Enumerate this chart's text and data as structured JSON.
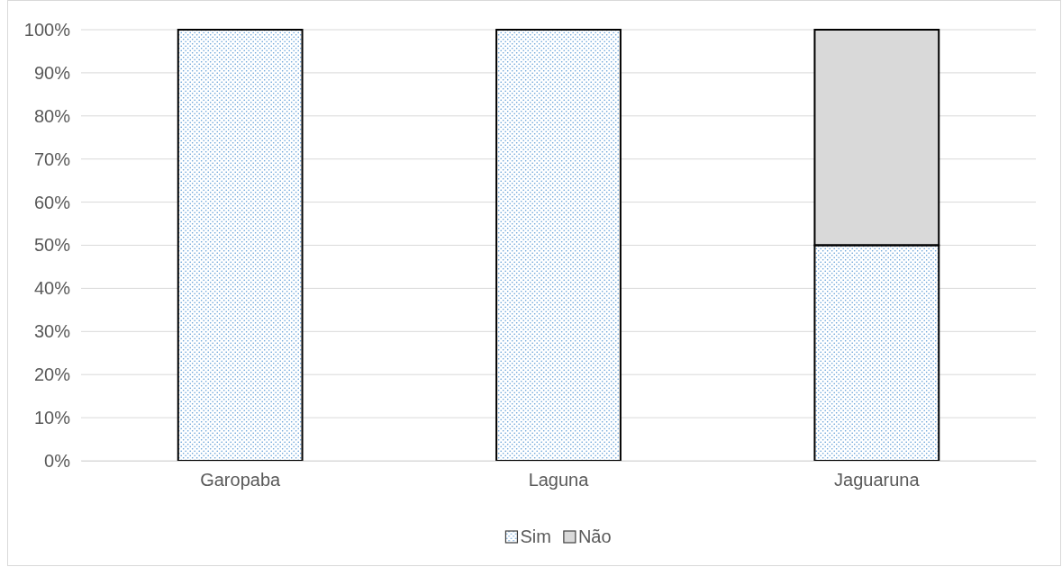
{
  "chart_data": {
    "type": "bar",
    "stacked": true,
    "categories": [
      "Garopaba",
      "Laguna",
      "Jaguaruna"
    ],
    "series": [
      {
        "name": "Sim",
        "color": "#5b9bd5",
        "values": [
          100,
          100,
          50
        ]
      },
      {
        "name": "Não",
        "color": "#d9d9d9",
        "values": [
          0,
          0,
          50
        ]
      }
    ],
    "ylim": [
      0,
      100
    ],
    "yticks": [
      {
        "value": 0,
        "label": "0%"
      },
      {
        "value": 10,
        "label": "10%"
      },
      {
        "value": 20,
        "label": "20%"
      },
      {
        "value": 30,
        "label": "30%"
      },
      {
        "value": 40,
        "label": "40%"
      },
      {
        "value": 50,
        "label": "50%"
      },
      {
        "value": 60,
        "label": "60%"
      },
      {
        "value": 70,
        "label": "70%"
      },
      {
        "value": 80,
        "label": "80%"
      },
      {
        "value": 90,
        "label": "90%"
      },
      {
        "value": 100,
        "label": "100%"
      }
    ],
    "grid": "y",
    "legend": "bottom"
  }
}
